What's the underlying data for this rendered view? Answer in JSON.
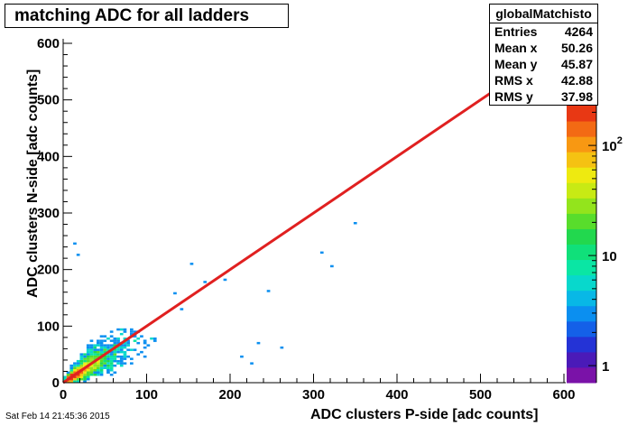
{
  "chart_data": {
    "type": "heatmap",
    "title": "matching ADC for all ladders",
    "xlabel": "ADC clusters P-side [adc counts]",
    "ylabel": "ADC clusters N-side [adc counts]",
    "xlim": [
      0,
      600
    ],
    "ylim": [
      0,
      600
    ],
    "x_ticks": [
      0,
      100,
      200,
      300,
      400,
      500,
      600
    ],
    "y_ticks": [
      0,
      100,
      200,
      300,
      400,
      500,
      600
    ],
    "z_scale": "log",
    "z_ticks": [
      {
        "base": "1",
        "exp": ""
      },
      {
        "base": "10",
        "exp": ""
      },
      {
        "base": "10",
        "exp": "2"
      }
    ],
    "z_ticks_values": [
      1,
      10,
      100
    ],
    "zlim": [
      0.7,
      230
    ],
    "palette": [
      "#7a12a8",
      "#4a1ab8",
      "#2433d6",
      "#1460e8",
      "#0b8ff0",
      "#08b8e6",
      "#08d8cc",
      "#0ae6a4",
      "#10e07a",
      "#22d84e",
      "#58dd2c",
      "#93e41c",
      "#c8ea14",
      "#eeea10",
      "#f5c212",
      "#f89812",
      "#f36a14",
      "#e83814"
    ],
    "stats": {
      "name": "globalMatchisto",
      "rows": [
        {
          "label": "Entries",
          "value": "4264"
        },
        {
          "label": "Mean x",
          "value": "50.26"
        },
        {
          "label": "Mean y",
          "value": "45.87"
        },
        {
          "label": "RMS x",
          "value": "42.88"
        },
        {
          "label": "RMS y",
          "value": "37.98"
        }
      ]
    },
    "diagonal_fit": {
      "x": [
        0,
        600
      ],
      "y": [
        0,
        600
      ],
      "color": "#e02020"
    },
    "footer": "Sat Feb 14 21:45:36 2015"
  }
}
